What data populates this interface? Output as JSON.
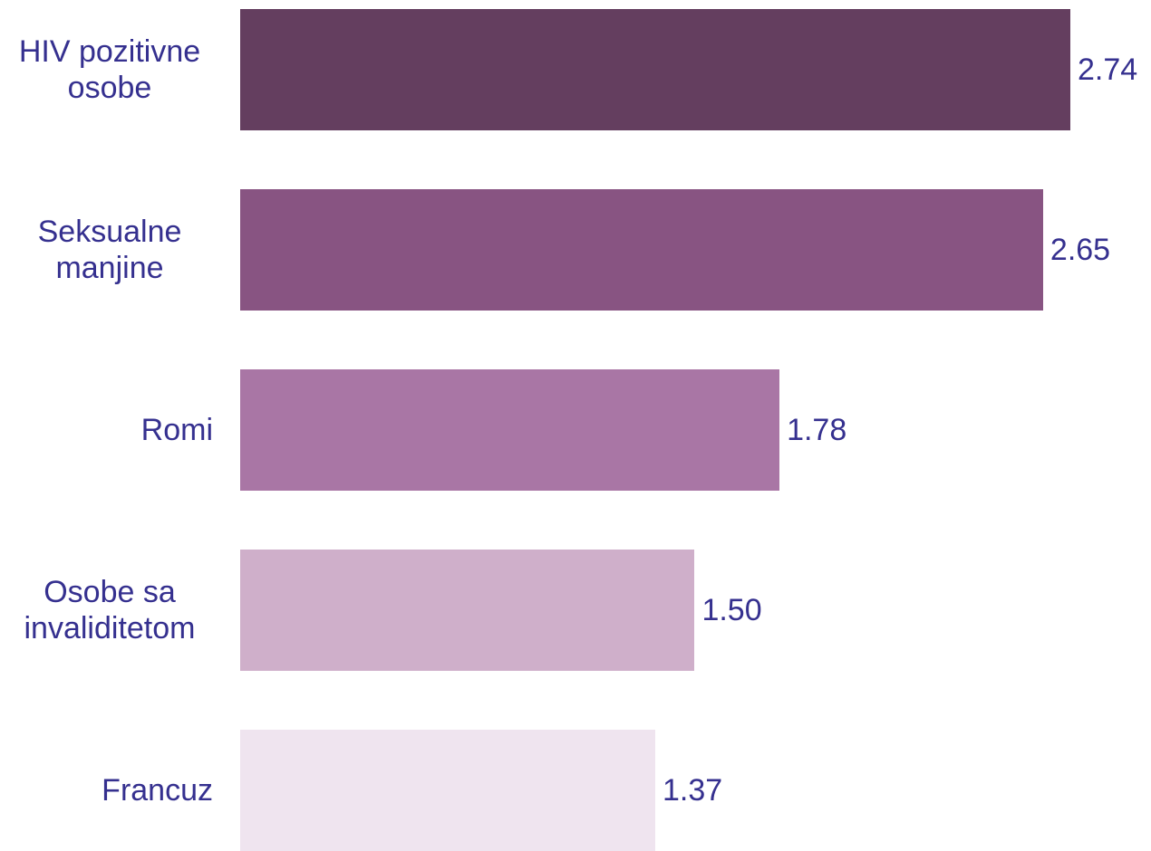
{
  "chart_data": {
    "type": "barh",
    "categories": [
      "HIV pozitivne osobe",
      "Seksualne manjine",
      "Romi",
      "Osobe sa invaliditetom",
      "Francuz"
    ],
    "values": [
      2.74,
      2.65,
      1.78,
      1.5,
      1.37
    ],
    "value_labels": [
      "2.74",
      "2.65",
      "1.78",
      "1.50",
      "1.37"
    ],
    "colors": [
      "#643e5f",
      "#885482",
      "#a976a5",
      "#cfafca",
      "#efe4ef"
    ]
  }
}
